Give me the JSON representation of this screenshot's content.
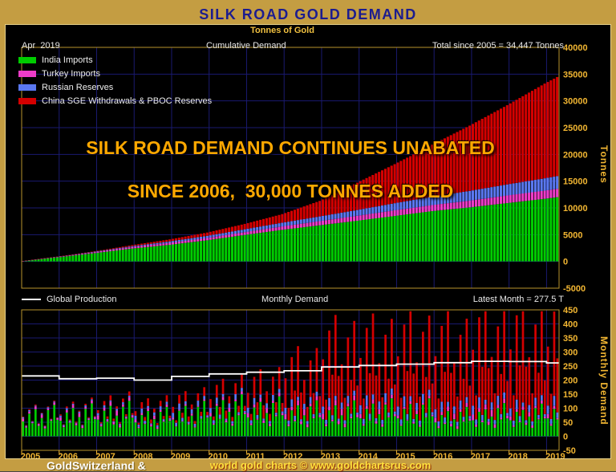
{
  "title": "SILK ROAD GOLD DEMAND",
  "subtitle": "Tonnes of Gold",
  "top_chart": {
    "date_label": "Apr  2019",
    "center_label": "Cumulative Demand",
    "right_label": "Total since 2005 = 34,447 Tonnes",
    "annotation_line1": "SILK ROAD DEMAND CONTINUES UNABATED",
    "annotation_line2": "SINCE 2006,  30,000 TONNES ADDED",
    "y_axis_label": "Tonnes",
    "legend": [
      {
        "label": "India Imports",
        "color": "#00cc00"
      },
      {
        "label": "Turkey Imports",
        "color": "#ee3cc8"
      },
      {
        "label": "Russian Reserves",
        "color": "#5a78f0"
      },
      {
        "label": "China SGE Withdrawals & PBOC Reserves",
        "color": "#d40000"
      }
    ]
  },
  "bottom_chart": {
    "legend_label": "Global Production",
    "center_label": "Monthly Demand",
    "right_label": "Latest Month = 277.5 T",
    "y_axis_label": "Monthly Demand"
  },
  "footer": {
    "brand": "GoldSwitzerland &",
    "credit": "world gold charts © www.goldchartsrus.com"
  },
  "colors": {
    "frame": "#c49d42",
    "title_text": "#1c1c8f",
    "background": "#000000",
    "grid": "#1a1a70",
    "plot_border": "#b9952b",
    "axis_text": "#f2b632",
    "year_text": "#f0dc90",
    "annotation": "#ffa800",
    "production_line": "#ffffff"
  },
  "chart_data": [
    {
      "type": "area",
      "name": "cumulative-demand",
      "stacked": true,
      "title": "Cumulative Demand",
      "x_range": [
        2005,
        2019.3333
      ],
      "ylim": [
        -5000,
        40000
      ],
      "y_ticks": [
        40000,
        35000,
        30000,
        25000,
        20000,
        15000,
        10000,
        5000,
        0,
        -5000
      ],
      "x_tick_years": [
        2005,
        2006,
        2007,
        2008,
        2009,
        2010,
        2011,
        2012,
        2013,
        2014,
        2015,
        2016,
        2017,
        2018,
        2019
      ],
      "total_at_end": 34447,
      "x_anchor_years": [
        2005,
        2006,
        2007,
        2008,
        2009,
        2010,
        2011,
        2012,
        2013,
        2014,
        2015,
        2016,
        2017,
        2018,
        2019,
        2019.3333
      ],
      "series": [
        {
          "name": "India Imports",
          "color": "#00cc00",
          "cumulative_anchors": [
            0,
            750,
            1550,
            2400,
            3100,
            3950,
            4950,
            5900,
            6750,
            7600,
            8500,
            9400,
            10100,
            10900,
            11700,
            12000
          ]
        },
        {
          "name": "Turkey Imports",
          "color": "#ee3cc8",
          "cumulative_anchors": [
            0,
            80,
            180,
            300,
            380,
            430,
            520,
            640,
            780,
            930,
            1050,
            1130,
            1260,
            1420,
            1530,
            1570
          ]
        },
        {
          "name": "Russian Reserves",
          "color": "#5a78f0",
          "cumulative_anchors": [
            0,
            40,
            90,
            150,
            260,
            400,
            540,
            700,
            880,
            1080,
            1330,
            1580,
            1820,
            2070,
            2300,
            2380
          ]
        },
        {
          "name": "China SGE Withdrawals & PBOC Reserves",
          "color": "#d40000",
          "cumulative_anchors": [
            0,
            30,
            80,
            200,
            380,
            620,
            1000,
            1600,
            2900,
            5100,
            7300,
            9700,
            12200,
            14800,
            17700,
            18497
          ]
        }
      ]
    },
    {
      "type": "bar",
      "name": "monthly-demand",
      "stacked": true,
      "title": "Monthly Demand",
      "months_start": "2005-01",
      "months_count": 172,
      "ylim": [
        -50,
        450
      ],
      "y_ticks": [
        450,
        400,
        350,
        300,
        250,
        200,
        150,
        100,
        50,
        0,
        -50
      ],
      "x_tick_years": [
        2005,
        2006,
        2007,
        2008,
        2009,
        2010,
        2011,
        2012,
        2013,
        2014,
        2015,
        2016,
        2017,
        2018,
        2019
      ],
      "latest_month_total": 277.5,
      "max_display_total": 445,
      "seasonal_pattern": [
        0.85,
        0.5,
        1.3,
        0.75,
        1.55,
        0.6,
        1.05,
        0.45,
        1.5,
        0.9,
        1.8,
        0.95
      ],
      "series": [
        {
          "name": "India Imports",
          "color": "#00cc00",
          "phase": 0,
          "yearly_avg": [
            62,
            65,
            70,
            58,
            70,
            83,
            79,
            71,
            71,
            75,
            75,
            58,
            67,
            67,
            75
          ]
        },
        {
          "name": "Turkey Imports",
          "color": "#ee3cc8",
          "phase": 4,
          "yearly_avg": [
            7,
            8,
            10,
            7,
            4,
            8,
            10,
            12,
            13,
            10,
            7,
            11,
            13,
            9,
            10
          ]
        },
        {
          "name": "Russian Reserves",
          "color": "#5a78f0",
          "phase": 8,
          "yearly_avg": [
            3,
            4,
            5,
            9,
            12,
            12,
            13,
            15,
            17,
            21,
            21,
            20,
            21,
            19,
            20
          ]
        },
        {
          "name": "China SGE Withdrawals & PBOC Reserves",
          "color": "#d40000",
          "phase": 6,
          "yearly_avg": [
            2,
            4,
            10,
            15,
            20,
            30,
            50,
            100,
            160,
            160,
            170,
            180,
            190,
            200,
            200
          ]
        }
      ],
      "production_line": {
        "name": "Global Production",
        "color": "#ffffff",
        "yearly_values": [
          215,
          205,
          207,
          200,
          213,
          222,
          228,
          233,
          247,
          252,
          257,
          262,
          267,
          266,
          261
        ]
      }
    }
  ]
}
